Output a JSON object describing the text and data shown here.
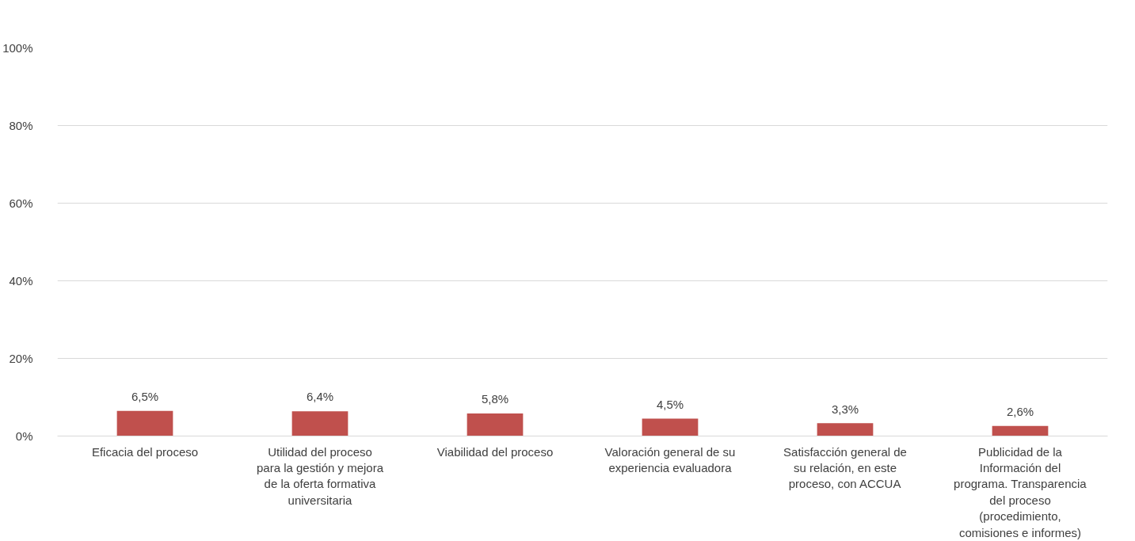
{
  "chart_data": {
    "type": "bar",
    "categories": [
      "Eficacia del proceso",
      "Utilidad del proceso para la gestión y mejora de la oferta formativa universitaria",
      "Viabilidad del proceso",
      "Valoración general de su experiencia evaluadora",
      "Satisfacción general de su relación, en este proceso, con ACCUA",
      "Publicidad de la Información del programa. Transparencia del proceso (procedimiento, comisiones e informes)"
    ],
    "values": [
      6.5,
      6.4,
      5.8,
      4.5,
      3.3,
      2.6
    ],
    "value_labels": [
      "6,5%",
      "6,4%",
      "5,8%",
      "4,5%",
      "3,3%",
      "2,6%"
    ],
    "color": "#c0504d",
    "ylim": [
      0,
      100
    ],
    "yticks": [
      {
        "value": 0,
        "label": "0%"
      },
      {
        "value": 20,
        "label": "20%"
      },
      {
        "value": 40,
        "label": "40%"
      },
      {
        "value": 60,
        "label": "60%"
      },
      {
        "value": 80,
        "label": "80%"
      },
      {
        "value": 100,
        "label": "100%"
      }
    ],
    "grid": "y"
  }
}
